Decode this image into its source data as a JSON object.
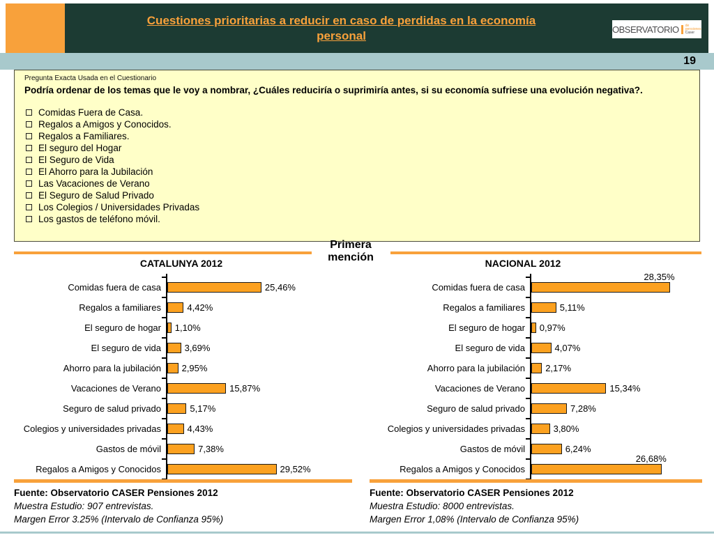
{
  "header": {
    "title_line1": "Cuestiones prioritarias a reducir en caso de perdidas en la economía",
    "title_line2": "personal",
    "logo": {
      "main": "OBSERVATORIO",
      "sub1": "de pensiones",
      "sub2": "Caser"
    }
  },
  "page_number": "19",
  "question_box": {
    "label": "Pregunta Exacta Usada en el Cuestionario",
    "question": "Podría ordenar de los temas que le voy a nombrar, ¿Cuáles reduciría o suprimiría antes, si su economía sufriese una evolución negativa?.",
    "items": [
      "Comidas Fuera de Casa.",
      "Regalos a Amigos y Conocidos.",
      "Regalos a Familiares.",
      "El seguro del Hogar",
      "El Seguro de Vida",
      "El Ahorro para la Jubilación",
      "Las Vacaciones de Verano",
      "El Seguro de Salud Privado",
      "Los Colegios / Universidades Privadas",
      "Los gastos de teléfono móvil."
    ]
  },
  "section_label": {
    "line1": "Primera",
    "line2": "mención"
  },
  "chart_data": [
    {
      "type": "bar",
      "orientation": "horizontal",
      "title": "CATALUNYA 2012",
      "unit": "%",
      "xlim": [
        0,
        30
      ],
      "categories": [
        "Comidas fuera de casa",
        "Regalos a familiares",
        "El seguro de hogar",
        "El seguro de vida",
        "Ahorro para la jubilación",
        "Vacaciones de Verano",
        "Seguro de salud privado",
        "Colegios y universidades privadas",
        "Gastos de móvil",
        "Regalos a Amigos y Conocidos"
      ],
      "values": [
        25.46,
        4.42,
        1.1,
        3.69,
        2.95,
        15.87,
        5.17,
        4.43,
        7.38,
        29.52
      ],
      "value_labels": [
        "25,46%",
        "4,42%",
        "1,10%",
        "3,69%",
        "2,95%",
        "15,87%",
        "5,17%",
        "4,43%",
        "7,38%",
        "29,52%"
      ],
      "above_indices": []
    },
    {
      "type": "bar",
      "orientation": "horizontal",
      "title": "NACIONAL 2012",
      "unit": "%",
      "xlim": [
        0,
        30
      ],
      "categories": [
        "Comidas fuera de casa",
        "Regalos a familiares",
        "El seguro de hogar",
        "El seguro de vida",
        "Ahorro para la jubilación",
        "Vacaciones de Verano",
        "Seguro de salud privado",
        "Colegios y universidades privadas",
        "Gastos de móvil",
        "Regalos a Amigos y Conocidos"
      ],
      "values": [
        28.35,
        5.11,
        0.97,
        4.07,
        2.17,
        15.34,
        7.28,
        3.8,
        6.24,
        26.68
      ],
      "value_labels": [
        "28,35%",
        "5,11%",
        "0,97%",
        "4,07%",
        "2,17%",
        "15,34%",
        "7,28%",
        "3,80%",
        "6,24%",
        "26,68%"
      ],
      "above_indices": [
        0,
        9
      ]
    }
  ],
  "footers": [
    {
      "fuente": "Fuente: Observatorio CASER Pensiones 2012",
      "muestra": "Muestra Estudio: 907 entrevistas.",
      "margen": "Margen Error 3.25% (Intervalo de Confianza 95%)"
    },
    {
      "fuente": "Fuente: Observatorio CASER Pensiones 2012",
      "muestra": "Muestra Estudio: 8000 entrevistas.",
      "margen": "Margen Error 1,08% (Intervalo de Confianza 95%)"
    }
  ],
  "colors": {
    "accent_orange": "#F8A13B",
    "bar_fill": "#FCA120",
    "header_green": "#1C3B33",
    "strip_teal": "#A8C9CC",
    "box_yellow": "#FFFFC8"
  }
}
